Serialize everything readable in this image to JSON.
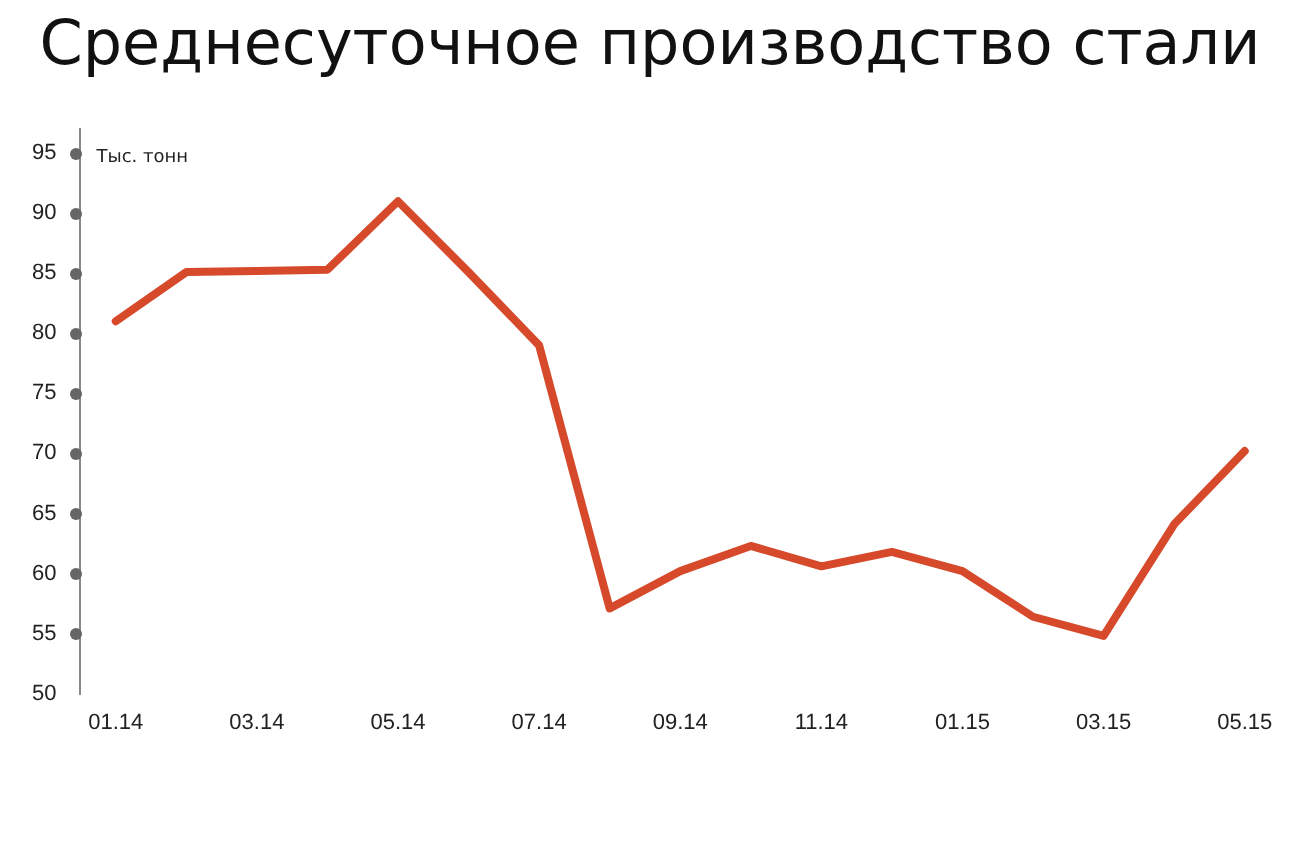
{
  "chart_data": {
    "type": "line",
    "title": "Среднесуточное производство стали",
    "ylabel": "Тыс. тонн",
    "categories": [
      "01.14",
      null,
      "03.14",
      null,
      "05.14",
      null,
      "07.14",
      null,
      "09.14",
      null,
      "11.14",
      null,
      "01.15",
      null,
      "03.15",
      null,
      "05.15"
    ],
    "series": [
      {
        "color": "#d64a2b",
        "values": [
          81.0,
          85.1,
          85.2,
          85.3,
          91.0,
          85.1,
          79.0,
          57.1,
          60.2,
          62.3,
          60.6,
          61.8,
          60.2,
          56.4,
          54.8,
          64.1,
          70.2
        ]
      }
    ],
    "ylim": [
      50,
      97
    ],
    "yticks": [
      50,
      55,
      60,
      65,
      70,
      75,
      80,
      85,
      90,
      95
    ],
    "grid": false,
    "legend": false,
    "marker": "none",
    "line_style": "solid"
  }
}
